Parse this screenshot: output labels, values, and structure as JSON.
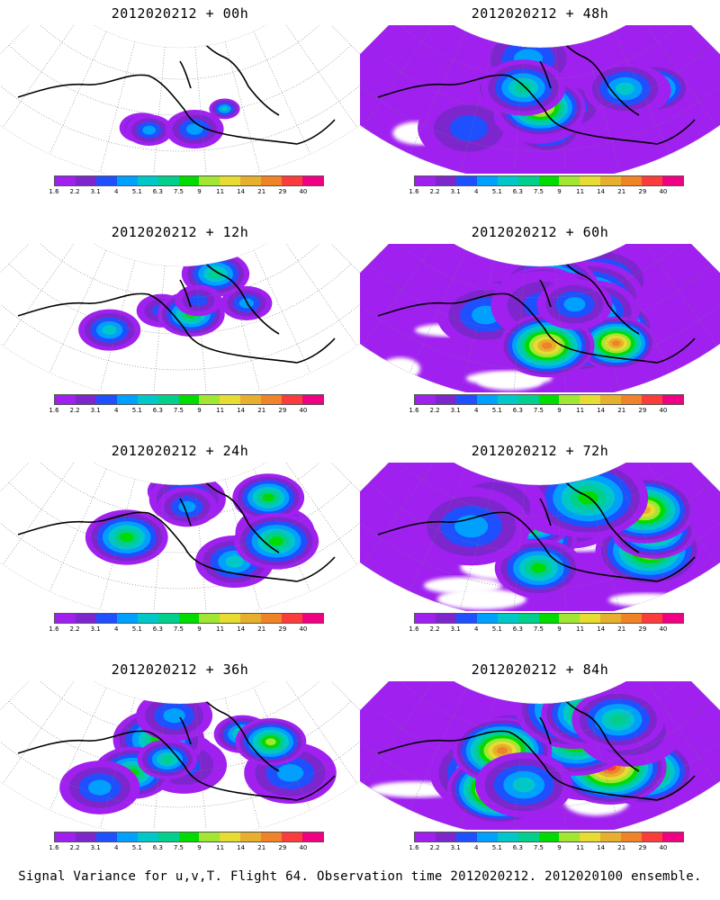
{
  "panels": [
    {
      "title": "2012020212 + 00h",
      "intensity": 0
    },
    {
      "title": "2012020212 + 12h",
      "intensity": 1
    },
    {
      "title": "2012020212 + 24h",
      "intensity": 2
    },
    {
      "title": "2012020212 + 36h",
      "intensity": 3
    },
    {
      "title": "2012020212 + 48h",
      "intensity": 4
    },
    {
      "title": "2012020212 + 60h",
      "intensity": 5
    },
    {
      "title": "2012020212 + 72h",
      "intensity": 6
    },
    {
      "title": "2012020212 + 84h",
      "intensity": 7
    }
  ],
  "colorbar": {
    "labels": [
      "1.6",
      "2.2",
      "3.1",
      "4",
      "5.1",
      "6.3",
      "7.5",
      "9",
      "11",
      "14",
      "21",
      "29",
      "40"
    ],
    "colors": [
      "#a020f0",
      "#7d26cd",
      "#1e50ff",
      "#00a0ff",
      "#00c8c8",
      "#00d08c",
      "#00dc00",
      "#a0e632",
      "#e6dc32",
      "#e6af2d",
      "#f08228",
      "#fa3c3c",
      "#f00082"
    ]
  },
  "footer": "Signal Variance for u,v,T. Flight 64. Observation time 2012020212. 2012020100 ensemble."
}
